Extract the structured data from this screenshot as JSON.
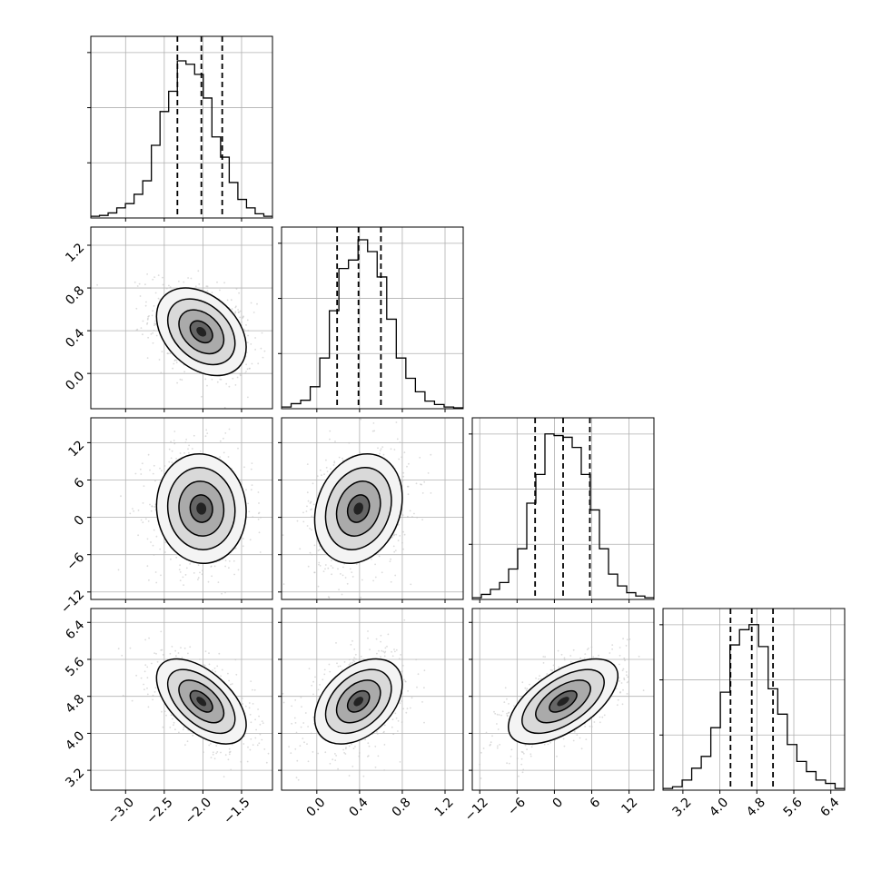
{
  "chart_data": {
    "type": "corner",
    "parameters": 4,
    "grid": true,
    "quantile_lines": "dashed",
    "quantiles": [
      [
        -2.33,
        -2.02,
        -1.75
      ],
      [
        0.19,
        0.39,
        0.6
      ],
      [
        -3.1,
        1.4,
        5.7
      ],
      [
        4.23,
        4.69,
        5.15
      ]
    ],
    "ranges": [
      [
        -3.45,
        -1.1
      ],
      [
        -0.33,
        1.37
      ],
      [
        -13.2,
        16.0
      ],
      [
        2.77,
        6.7
      ]
    ],
    "ticks": [
      [
        -3.0,
        -2.5,
        -2.0,
        -1.5
      ],
      [
        0.0,
        0.4,
        0.8,
        1.2
      ],
      [
        -12,
        -6,
        0,
        6,
        12
      ],
      [
        3.2,
        4.0,
        4.8,
        5.6,
        6.4
      ]
    ],
    "tick_labels": [
      [
        "−3.0",
        "−2.5",
        "−2.0",
        "−1.5"
      ],
      [
        "0.0",
        "0.4",
        "0.8",
        "1.2"
      ],
      [
        "−12",
        "−6",
        "0",
        "6",
        "12"
      ],
      [
        "3.2",
        "4.0",
        "4.8",
        "5.6",
        "6.4"
      ]
    ],
    "histograms": [
      [
        0.01,
        0.015,
        0.03,
        0.06,
        0.085,
        0.14,
        0.22,
        0.43,
        0.63,
        0.75,
        0.93,
        0.91,
        0.85,
        0.71,
        0.48,
        0.36,
        0.21,
        0.11,
        0.06,
        0.025,
        0.01
      ],
      [
        0.01,
        0.03,
        0.05,
        0.13,
        0.3,
        0.58,
        0.83,
        0.88,
        1.0,
        0.93,
        0.78,
        0.53,
        0.3,
        0.18,
        0.1,
        0.045,
        0.025,
        0.01,
        0.005
      ],
      [
        0.01,
        0.03,
        0.06,
        0.1,
        0.18,
        0.3,
        0.57,
        0.74,
        0.98,
        0.97,
        0.96,
        0.9,
        0.74,
        0.53,
        0.3,
        0.15,
        0.08,
        0.04,
        0.02,
        0.01
      ],
      [
        0.01,
        0.02,
        0.06,
        0.13,
        0.2,
        0.37,
        0.58,
        0.86,
        0.95,
        0.98,
        0.85,
        0.6,
        0.45,
        0.27,
        0.17,
        0.11,
        0.06,
        0.04,
        0.01
      ]
    ],
    "correlations": {
      "1-0": -0.35,
      "2-0": -0.05,
      "2-1": 0.2,
      "3-0": -0.55,
      "3-1": 0.4,
      "3-2": 0.6
    },
    "scatter_color": "#bdbdbd",
    "density_color": "#000000"
  }
}
